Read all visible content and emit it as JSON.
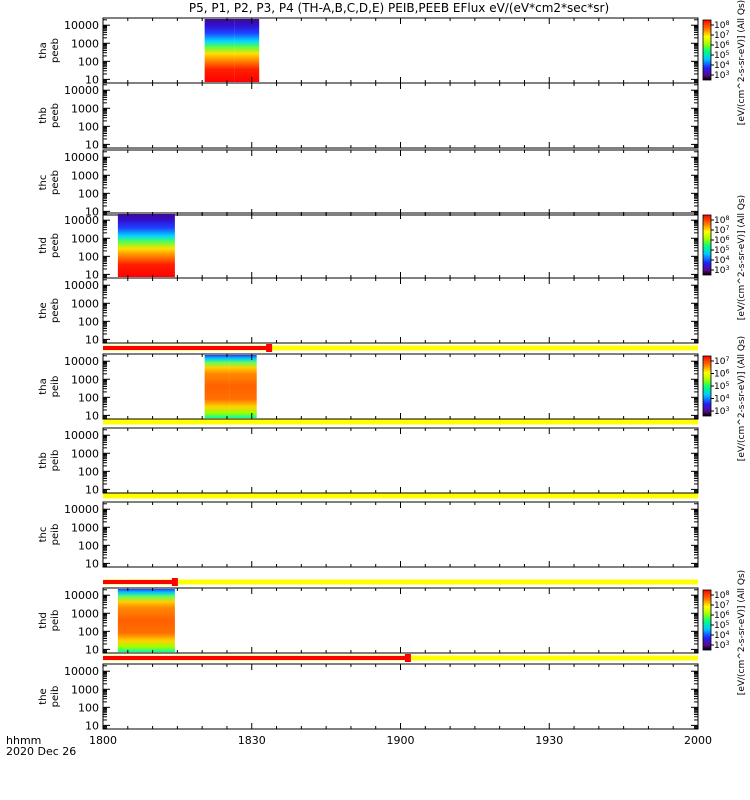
{
  "chart_data": {
    "type": "heatmap",
    "title": "P5, P1, P2, P3, P4 (TH-A,B,C,D,E) PEIB,PEEB EFlux eV/(eV*cm2*sec*sr)",
    "x_axis": {
      "tick_labels": [
        "1800",
        "1830",
        "1900",
        "1930",
        "2000"
      ],
      "tick_minutes": [
        0,
        30,
        60,
        90,
        120
      ],
      "range_minutes": [
        0,
        120
      ],
      "footer_top": "hhmm",
      "footer_bottom": "2020 Dec 26"
    },
    "y_tick_labels": [
      "10",
      "100",
      "1000",
      "10000"
    ],
    "y_range_log10": [
      0.8,
      4.4
    ],
    "panels": [
      {
        "ylabel1": "tha",
        "ylabel2": "peeb",
        "blocks": [
          [
            20.5,
            26.5
          ],
          [
            26.5,
            31.5
          ]
        ],
        "style": "electron",
        "colorbar": {
          "ticks": [
            "10^8",
            "10^7",
            "10^6",
            "10^5",
            "10^4",
            "10^3"
          ],
          "label": "[eV/(cm^2-s-sr-eV)] (All Qs)"
        }
      },
      {
        "ylabel1": "thb",
        "ylabel2": "peeb",
        "blocks": [],
        "style": "electron"
      },
      {
        "ylabel1": "thc",
        "ylabel2": "peeb",
        "blocks": [],
        "style": "electron"
      },
      {
        "ylabel1": "thd",
        "ylabel2": "peeb",
        "blocks": [
          [
            3,
            14.5
          ]
        ],
        "style": "electron",
        "colorbar": {
          "ticks": [
            "10^8",
            "10^7",
            "10^6",
            "10^5",
            "10^4",
            "10^3"
          ],
          "label": "[eV/(cm^2-s-sr-eV)] (All Qs)"
        }
      },
      {
        "ylabel1": "the",
        "ylabel2": "peeb",
        "blocks": [],
        "style": "electron"
      },
      {
        "ylabel1": "tha",
        "ylabel2": "peib",
        "blocks": [
          [
            20.5,
            25.5
          ],
          [
            25.5,
            31
          ]
        ],
        "style": "ion",
        "colorbar": {
          "ticks": [
            "10^7",
            "10^6",
            "10^5",
            "10^4",
            "10^3"
          ],
          "label": "[eV/(cm^2-s-sr-eV)] (All Qs)"
        }
      },
      {
        "ylabel1": "thb",
        "ylabel2": "peib",
        "blocks": [],
        "style": "ion"
      },
      {
        "ylabel1": "thc",
        "ylabel2": "peib",
        "blocks": [],
        "style": "ion"
      },
      {
        "ylabel1": "thd",
        "ylabel2": "peib",
        "blocks": [
          [
            3,
            14.5
          ]
        ],
        "style": "ion",
        "colorbar": {
          "ticks": [
            "10^8",
            "10^7",
            "10^6",
            "10^5",
            "10^4",
            "10^3"
          ],
          "label": "[eV/(cm^2-s-sr-eV)] (All Qs)"
        }
      },
      {
        "ylabel1": "the",
        "ylabel2": "peib",
        "blocks": [],
        "style": "ion"
      }
    ],
    "mode_bars": [
      {
        "after_panel": 4,
        "red_end_minutes": 33.5,
        "partial": true
      },
      {
        "after_panel": 5,
        "red_end_minutes": 0,
        "partial": false
      },
      {
        "after_panel": 6,
        "red_end_minutes": 0,
        "partial": false
      },
      {
        "after_panel": 7,
        "red_end_minutes": 14.5,
        "partial": true
      },
      {
        "after_panel": 8,
        "red_end_minutes": 61.5,
        "partial": true
      }
    ],
    "colors": {
      "bar_red": "#ff0000",
      "bar_yellow": "#ffff00"
    }
  }
}
